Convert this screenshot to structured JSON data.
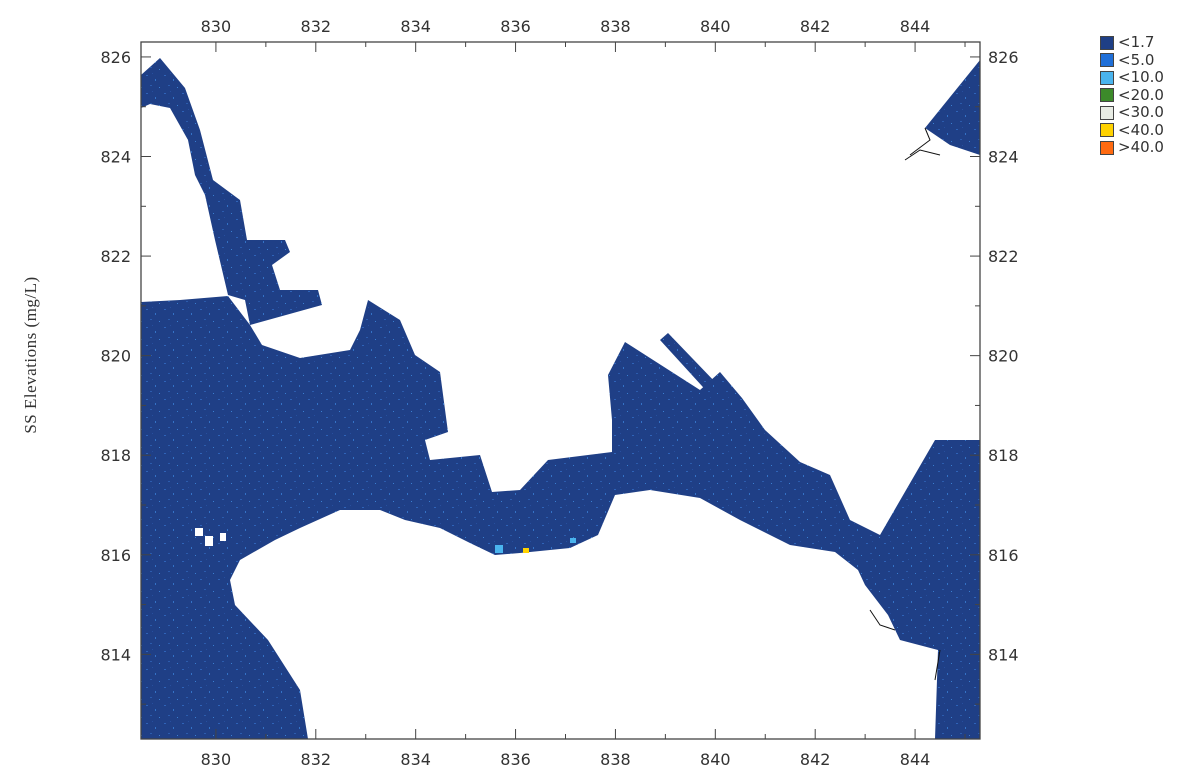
{
  "map": {
    "ylabel": "SS Elevations (mg/L)",
    "x_ticks": [
      "830",
      "832",
      "834",
      "836",
      "838",
      "840",
      "842",
      "844"
    ],
    "y_ticks": [
      "814",
      "816",
      "818",
      "820",
      "822",
      "824",
      "826"
    ],
    "water_color": "#1f3f86",
    "land_color": "#ffffff"
  },
  "legend": {
    "items": [
      {
        "label": "<1.7",
        "color": "#1f3f86"
      },
      {
        "label": "<5.0",
        "color": "#1f6fd8"
      },
      {
        "label": "<10.0",
        "color": "#4ab4ee"
      },
      {
        "label": "<20.0",
        "color": "#3c8a2a"
      },
      {
        "label": "<30.0",
        "color": "#e8ece4"
      },
      {
        "label": "<40.0",
        "color": "#ffd200"
      },
      {
        "label": ">40.0",
        "color": "#ff6a10"
      }
    ]
  }
}
